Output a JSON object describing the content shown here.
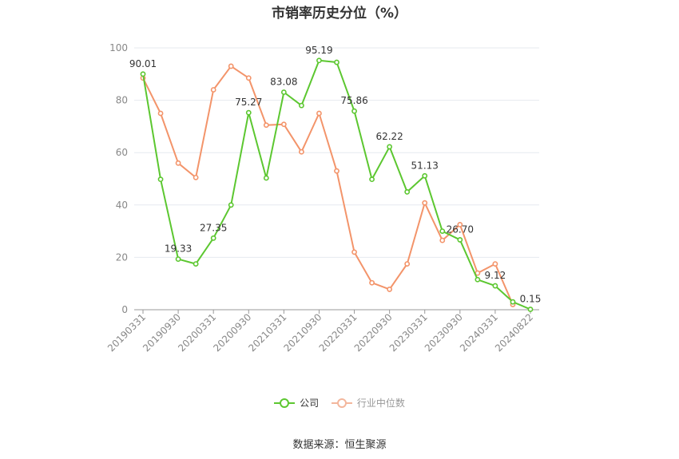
{
  "title": "市销率历史分位（%）",
  "source": "数据来源：恒生聚源",
  "colors": {
    "company": "#5cc730",
    "industry": "#f3946a",
    "grid": "#e6e9ef",
    "axis": "#888888"
  },
  "chart_data": {
    "type": "line",
    "title": "市销率历史分位（%）",
    "ylim": [
      0,
      100
    ],
    "yticks": [
      0,
      20,
      40,
      60,
      80,
      100
    ],
    "grid": true,
    "legend_position": "bottom-center",
    "x": [
      "20190331",
      "20190630",
      "20190930",
      "20191231",
      "20200331",
      "20200630",
      "20200930",
      "20201231",
      "20210331",
      "20210630",
      "20210930",
      "20211231",
      "20220331",
      "20220630",
      "20220930",
      "20221231",
      "20230331",
      "20230630",
      "20230930",
      "20231231",
      "20240331",
      "20240630",
      "20240822"
    ],
    "xticks": [
      "20190331",
      "20190930",
      "20200331",
      "20200930",
      "20210331",
      "20210930",
      "20220331",
      "20220930",
      "20230331",
      "20230930",
      "20240331",
      "20240822"
    ],
    "series": [
      {
        "name": "公司",
        "color": "#5cc730",
        "values": [
          90.01,
          49.8,
          19.33,
          17.5,
          27.35,
          40.0,
          75.27,
          50.3,
          83.08,
          78.0,
          95.19,
          94.5,
          75.86,
          49.8,
          62.22,
          45.0,
          51.13,
          30.0,
          26.7,
          11.5,
          9.12,
          3.0,
          0.15
        ],
        "labels": [
          "90.01",
          "",
          "19.33",
          "",
          "27.35",
          "",
          "75.27",
          "",
          "83.08",
          "",
          "95.19",
          "",
          "75.86",
          "",
          "62.22",
          "",
          "51.13",
          "",
          "26.70",
          "",
          "9.12",
          "",
          "0.15"
        ]
      },
      {
        "name": "行业中位数",
        "color": "#f3946a",
        "values": [
          88.5,
          75.0,
          56.0,
          50.5,
          84.0,
          93.0,
          88.5,
          70.5,
          70.8,
          60.3,
          75.0,
          53.0,
          22.0,
          10.3,
          7.8,
          17.5,
          40.8,
          26.5,
          32.5,
          14.0,
          17.5,
          2.0,
          null
        ]
      }
    ]
  }
}
